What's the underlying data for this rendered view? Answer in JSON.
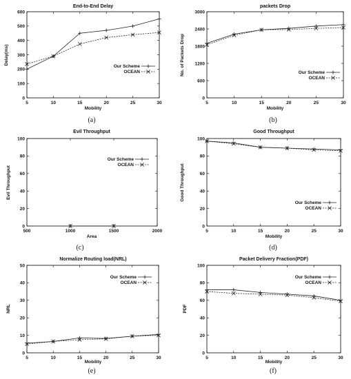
{
  "chart_data": [
    {
      "panel": "(a)",
      "type": "line",
      "title": "End-to-End Delay",
      "xlabel": "Mobility",
      "ylabel": "Delay(ms)",
      "xlim": [
        5,
        30
      ],
      "ylim": [
        0,
        600
      ],
      "xticks": [
        5,
        10,
        15,
        20,
        25,
        30
      ],
      "yticks": [
        0,
        100,
        200,
        300,
        400,
        500,
        600
      ],
      "legend_position": "center-right",
      "x": [
        5,
        10,
        15,
        20,
        25,
        30
      ],
      "series": [
        {
          "name": "Our Scheme",
          "marker": "plus",
          "dash": false,
          "values": [
            200,
            290,
            450,
            470,
            500,
            550
          ]
        },
        {
          "name": "OCEAN",
          "marker": "x",
          "dash": true,
          "values": [
            235,
            290,
            375,
            420,
            440,
            455
          ]
        }
      ]
    },
    {
      "panel": "(b)",
      "type": "line",
      "title": "packets Drop",
      "xlabel": "Mobility",
      "ylabel": "No. of Packets Drop",
      "xlim": [
        5,
        30
      ],
      "ylim": [
        0,
        3000
      ],
      "xticks": [
        5,
        10,
        15,
        20,
        25,
        30
      ],
      "yticks": [
        0,
        600,
        1200,
        1800,
        2400,
        3000
      ],
      "legend_position": "lower-right",
      "x": [
        5,
        10,
        15,
        20,
        25,
        30
      ],
      "series": [
        {
          "name": "Our Scheme",
          "marker": "plus",
          "dash": false,
          "values": [
            1900,
            2220,
            2370,
            2420,
            2500,
            2550
          ]
        },
        {
          "name": "OCEAN",
          "marker": "x",
          "dash": true,
          "values": [
            1850,
            2180,
            2370,
            2380,
            2420,
            2450
          ]
        }
      ]
    },
    {
      "panel": "(c)",
      "type": "line",
      "title": "Evil Throughput",
      "xlabel": "Area",
      "ylabel": "Evil Throughput",
      "xlim": [
        500,
        2000
      ],
      "ylim": [
        0,
        100
      ],
      "xticks": [
        500,
        1000,
        1500,
        2000
      ],
      "yticks": [
        0,
        20,
        40,
        60,
        80,
        100
      ],
      "legend_position": "top-right",
      "x": [
        1000,
        1500
      ],
      "series": [
        {
          "name": "Our Scheme",
          "marker": "plus",
          "dash": false,
          "values": [
            0,
            0
          ]
        },
        {
          "name": "OCEAN",
          "marker": "x",
          "dash": true,
          "values": [
            0,
            0
          ]
        }
      ]
    },
    {
      "panel": "(d)",
      "type": "line",
      "title": "Good Throughput",
      "xlabel": "Mobility",
      "ylabel": "Good Throughput",
      "xlim": [
        5,
        30
      ],
      "ylim": [
        0,
        100
      ],
      "xticks": [
        5,
        10,
        15,
        20,
        25,
        30
      ],
      "yticks": [
        0,
        20,
        40,
        60,
        80,
        100
      ],
      "legend_position": "lower-right",
      "x": [
        5,
        10,
        15,
        20,
        25,
        30
      ],
      "series": [
        {
          "name": "Our Scheme",
          "marker": "plus",
          "dash": false,
          "values": [
            97,
            95,
            90,
            89,
            88,
            87
          ]
        },
        {
          "name": "OCEAN",
          "marker": "x",
          "dash": true,
          "values": [
            97,
            94,
            90,
            89,
            87,
            86
          ]
        }
      ]
    },
    {
      "panel": "(e)",
      "type": "line",
      "title": "Normalize Routing load(NRL)",
      "xlabel": "Mobility",
      "ylabel": "NRL",
      "xlim": [
        5,
        30
      ],
      "ylim": [
        0,
        50
      ],
      "xticks": [
        5,
        10,
        15,
        20,
        25,
        30
      ],
      "yticks": [
        0,
        10,
        20,
        30,
        40,
        50
      ],
      "legend_position": "top-right",
      "x": [
        5,
        10,
        15,
        20,
        25,
        30
      ],
      "series": [
        {
          "name": "Our Scheme",
          "marker": "plus",
          "dash": false,
          "values": [
            5.5,
            6.5,
            8.5,
            8.2,
            9.5,
            10.5
          ]
        },
        {
          "name": "OCEAN",
          "marker": "x",
          "dash": true,
          "values": [
            5.0,
            6.5,
            7.5,
            8.0,
            9.5,
            10.0
          ]
        }
      ]
    },
    {
      "panel": "(f)",
      "type": "line",
      "title": "Packet Delivery Fraction(PDF)",
      "xlabel": "Mobility",
      "ylabel": "PDF",
      "xlim": [
        5,
        30
      ],
      "ylim": [
        0,
        100
      ],
      "xticks": [
        5,
        10,
        15,
        20,
        25,
        30
      ],
      "yticks": [
        0,
        20,
        40,
        60,
        80,
        100
      ],
      "legend_position": "center-right",
      "x": [
        5,
        10,
        15,
        20,
        25,
        30
      ],
      "series": [
        {
          "name": "Our Scheme",
          "marker": "plus",
          "dash": false,
          "values": [
            72,
            72,
            69,
            67,
            65,
            60
          ]
        },
        {
          "name": "OCEAN",
          "marker": "x",
          "dash": true,
          "values": [
            70,
            68,
            67,
            66,
            63,
            59
          ]
        }
      ]
    }
  ]
}
